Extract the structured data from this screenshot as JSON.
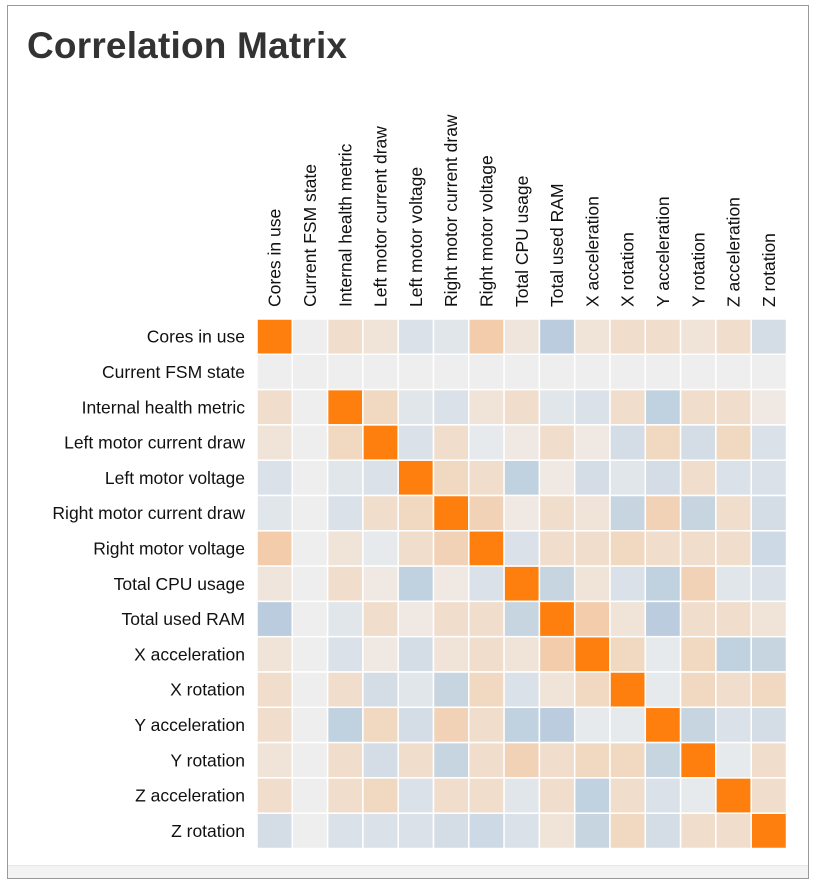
{
  "title": "Correlation Matrix",
  "chart_data": {
    "type": "heatmap",
    "title": "Correlation Matrix",
    "labels": [
      "Cores in use",
      "Current FSM state",
      "Internal health metric",
      "Left motor current draw",
      "Left motor voltage",
      "Right motor current draw",
      "Right motor voltage",
      "Total CPU usage",
      "Total used RAM",
      "X acceleration",
      "X rotation",
      "Y acceleration",
      "Y rotation",
      "Z acceleration",
      "Z rotation"
    ],
    "value_range": [
      -1,
      1
    ],
    "colors": {
      "positive": "#ff7f0e",
      "neutral": "#eeeeee",
      "negative": "#6b9ac4"
    },
    "matrix": [
      [
        1.0,
        0.0,
        0.15,
        0.1,
        -0.15,
        -0.1,
        0.3,
        0.08,
        -0.4,
        0.1,
        0.15,
        0.15,
        0.1,
        0.15,
        -0.2
      ],
      [
        0.0,
        0.0,
        0.0,
        0.0,
        0.0,
        0.0,
        0.0,
        0.0,
        0.0,
        0.0,
        0.0,
        0.0,
        0.0,
        0.0,
        0.0
      ],
      [
        0.15,
        0.0,
        1.0,
        0.2,
        -0.1,
        -0.15,
        0.1,
        0.15,
        -0.1,
        -0.15,
        0.15,
        -0.35,
        0.15,
        0.15,
        0.05
      ],
      [
        0.1,
        0.0,
        0.2,
        1.0,
        -0.15,
        0.15,
        -0.05,
        0.05,
        0.15,
        0.05,
        -0.2,
        0.2,
        -0.2,
        0.2,
        -0.15
      ],
      [
        -0.15,
        0.0,
        -0.1,
        -0.15,
        1.0,
        0.2,
        0.15,
        -0.35,
        0.05,
        -0.2,
        -0.1,
        -0.2,
        0.15,
        -0.15,
        -0.15
      ],
      [
        -0.1,
        0.0,
        -0.15,
        0.15,
        0.2,
        1.0,
        0.25,
        0.05,
        0.15,
        0.1,
        -0.3,
        0.25,
        -0.3,
        0.15,
        -0.2
      ],
      [
        0.3,
        0.0,
        0.1,
        -0.05,
        0.15,
        0.25,
        1.0,
        -0.15,
        0.15,
        0.15,
        0.2,
        0.15,
        0.15,
        0.15,
        -0.25
      ],
      [
        0.08,
        0.0,
        0.15,
        0.05,
        -0.35,
        0.05,
        -0.15,
        1.0,
        -0.3,
        0.1,
        -0.15,
        -0.35,
        0.25,
        -0.1,
        -0.15
      ],
      [
        -0.4,
        0.0,
        -0.1,
        0.15,
        0.05,
        0.15,
        0.15,
        -0.3,
        1.0,
        0.3,
        0.1,
        -0.4,
        0.15,
        0.15,
        0.1
      ],
      [
        0.1,
        0.0,
        -0.15,
        0.05,
        -0.2,
        0.1,
        0.15,
        0.1,
        0.3,
        1.0,
        0.2,
        -0.05,
        0.2,
        -0.35,
        -0.3
      ],
      [
        0.15,
        0.0,
        0.15,
        -0.2,
        -0.1,
        -0.3,
        0.2,
        -0.15,
        0.1,
        0.2,
        1.0,
        -0.05,
        0.2,
        0.15,
        0.2
      ],
      [
        0.15,
        0.0,
        -0.35,
        0.2,
        -0.2,
        0.25,
        0.15,
        -0.35,
        -0.4,
        -0.05,
        -0.05,
        1.0,
        -0.3,
        -0.15,
        -0.2
      ],
      [
        0.1,
        0.0,
        0.15,
        -0.2,
        0.15,
        -0.3,
        0.15,
        0.25,
        0.15,
        0.2,
        0.2,
        -0.3,
        1.0,
        -0.05,
        0.15
      ],
      [
        0.15,
        0.0,
        0.15,
        0.2,
        -0.15,
        0.15,
        0.15,
        -0.1,
        0.15,
        -0.35,
        0.15,
        -0.15,
        -0.05,
        1.0,
        0.15
      ],
      [
        -0.2,
        0.0,
        -0.15,
        -0.15,
        -0.15,
        -0.2,
        -0.25,
        -0.15,
        0.1,
        -0.3,
        0.2,
        -0.2,
        0.15,
        0.15,
        1.0
      ]
    ]
  }
}
